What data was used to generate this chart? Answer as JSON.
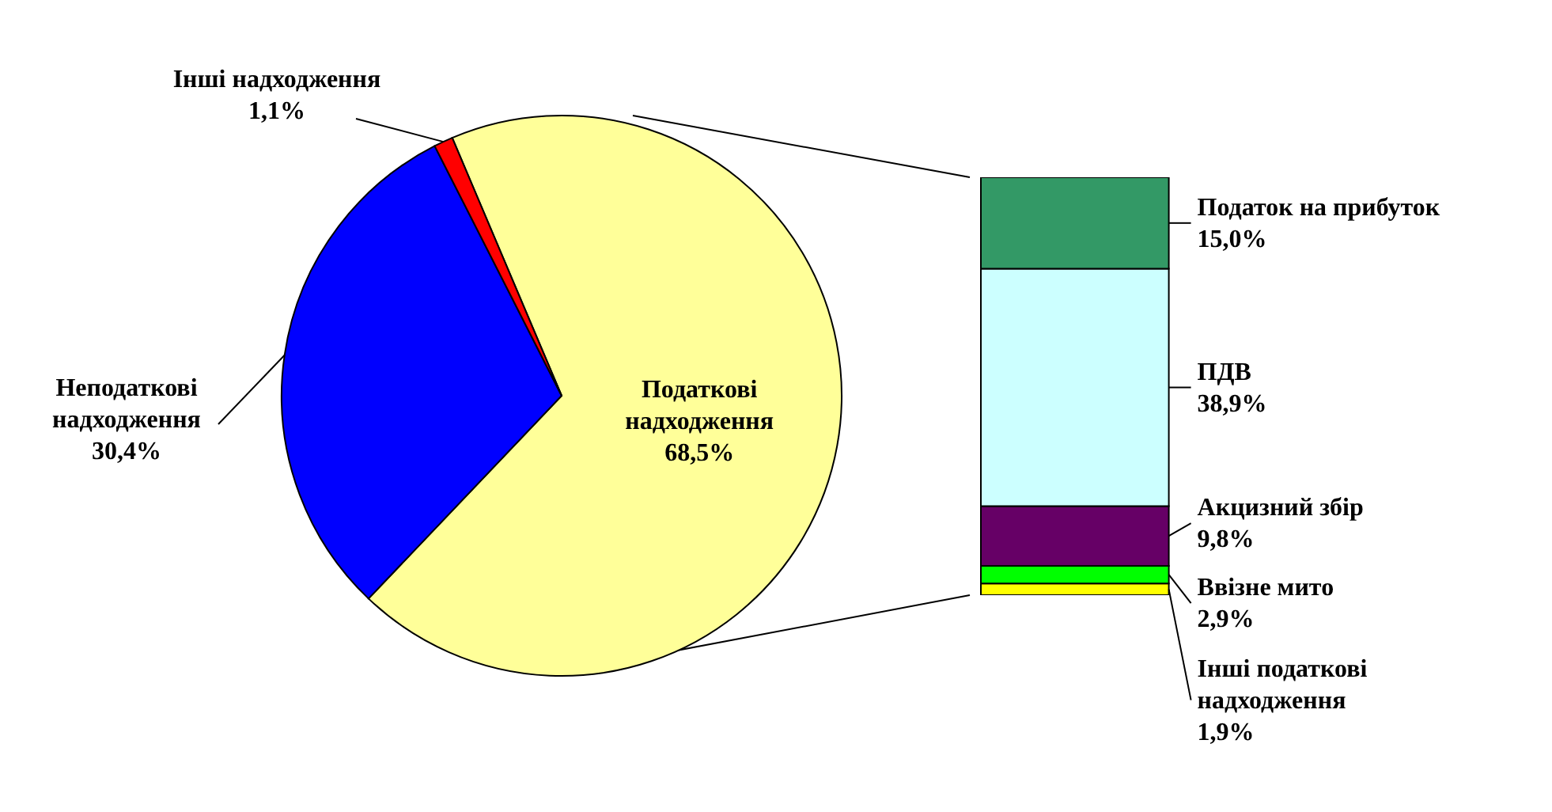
{
  "chart_data": [
    {
      "type": "pie",
      "categories": [
        "Податкові надходження",
        "Неподаткові надходження",
        "Інші надходження"
      ],
      "values": [
        68.5,
        30.4,
        1.1
      ],
      "colors": [
        "#ffff99",
        "#0000ff",
        "#ff0000"
      ],
      "value_labels": [
        "68,5%",
        "30,4%",
        "1,1%"
      ]
    },
    {
      "type": "bar",
      "stacked": true,
      "categories": [
        null
      ],
      "series": [
        {
          "name": "Інші податкові надходження",
          "color": "#ffff00",
          "values": [
            1.9
          ],
          "value_labels": [
            "1,9%"
          ]
        },
        {
          "name": "Ввізне мито",
          "color": "#00ff00",
          "values": [
            2.9
          ],
          "value_labels": [
            "2,9%"
          ]
        },
        {
          "name": "Акцизний збір",
          "color": "#660066",
          "values": [
            9.8
          ],
          "value_labels": [
            "9,8%"
          ]
        },
        {
          "name": "ПДВ",
          "color": "#ccffff",
          "values": [
            38.9
          ],
          "value_labels": [
            "38,9%"
          ]
        },
        {
          "name": "Податок на прибуток",
          "color": "#339966",
          "values": [
            15.0
          ],
          "value_labels": [
            "15,0%"
          ]
        }
      ]
    }
  ]
}
